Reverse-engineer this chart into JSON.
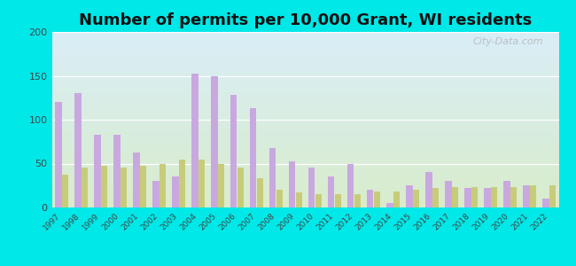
{
  "title": "Number of permits per 10,000 Grant, WI residents",
  "years": [
    1997,
    1998,
    1999,
    2000,
    2001,
    2002,
    2003,
    2004,
    2005,
    2006,
    2007,
    2008,
    2009,
    2010,
    2011,
    2012,
    2013,
    2014,
    2015,
    2016,
    2017,
    2018,
    2019,
    2020,
    2021,
    2022
  ],
  "grant_town": [
    120,
    130,
    83,
    83,
    63,
    30,
    35,
    153,
    150,
    128,
    113,
    68,
    53,
    45,
    35,
    50,
    20,
    5,
    25,
    40,
    30,
    22,
    22,
    30,
    25,
    10
  ],
  "wi_average": [
    37,
    45,
    47,
    45,
    47,
    50,
    55,
    55,
    50,
    45,
    33,
    20,
    17,
    15,
    15,
    15,
    18,
    18,
    20,
    22,
    23,
    23,
    23,
    23,
    25,
    25
  ],
  "grant_color": "#c9a8e0",
  "wi_color": "#c8cc7a",
  "bg_outer": "#00e8e8",
  "bg_plot_top": "#daeef8",
  "bg_plot_bottom": "#d8eccc",
  "ylim": [
    0,
    200
  ],
  "yticks": [
    0,
    50,
    100,
    150,
    200
  ],
  "title_fontsize": 13,
  "bar_width": 0.35,
  "watermark": "City-Data.com"
}
